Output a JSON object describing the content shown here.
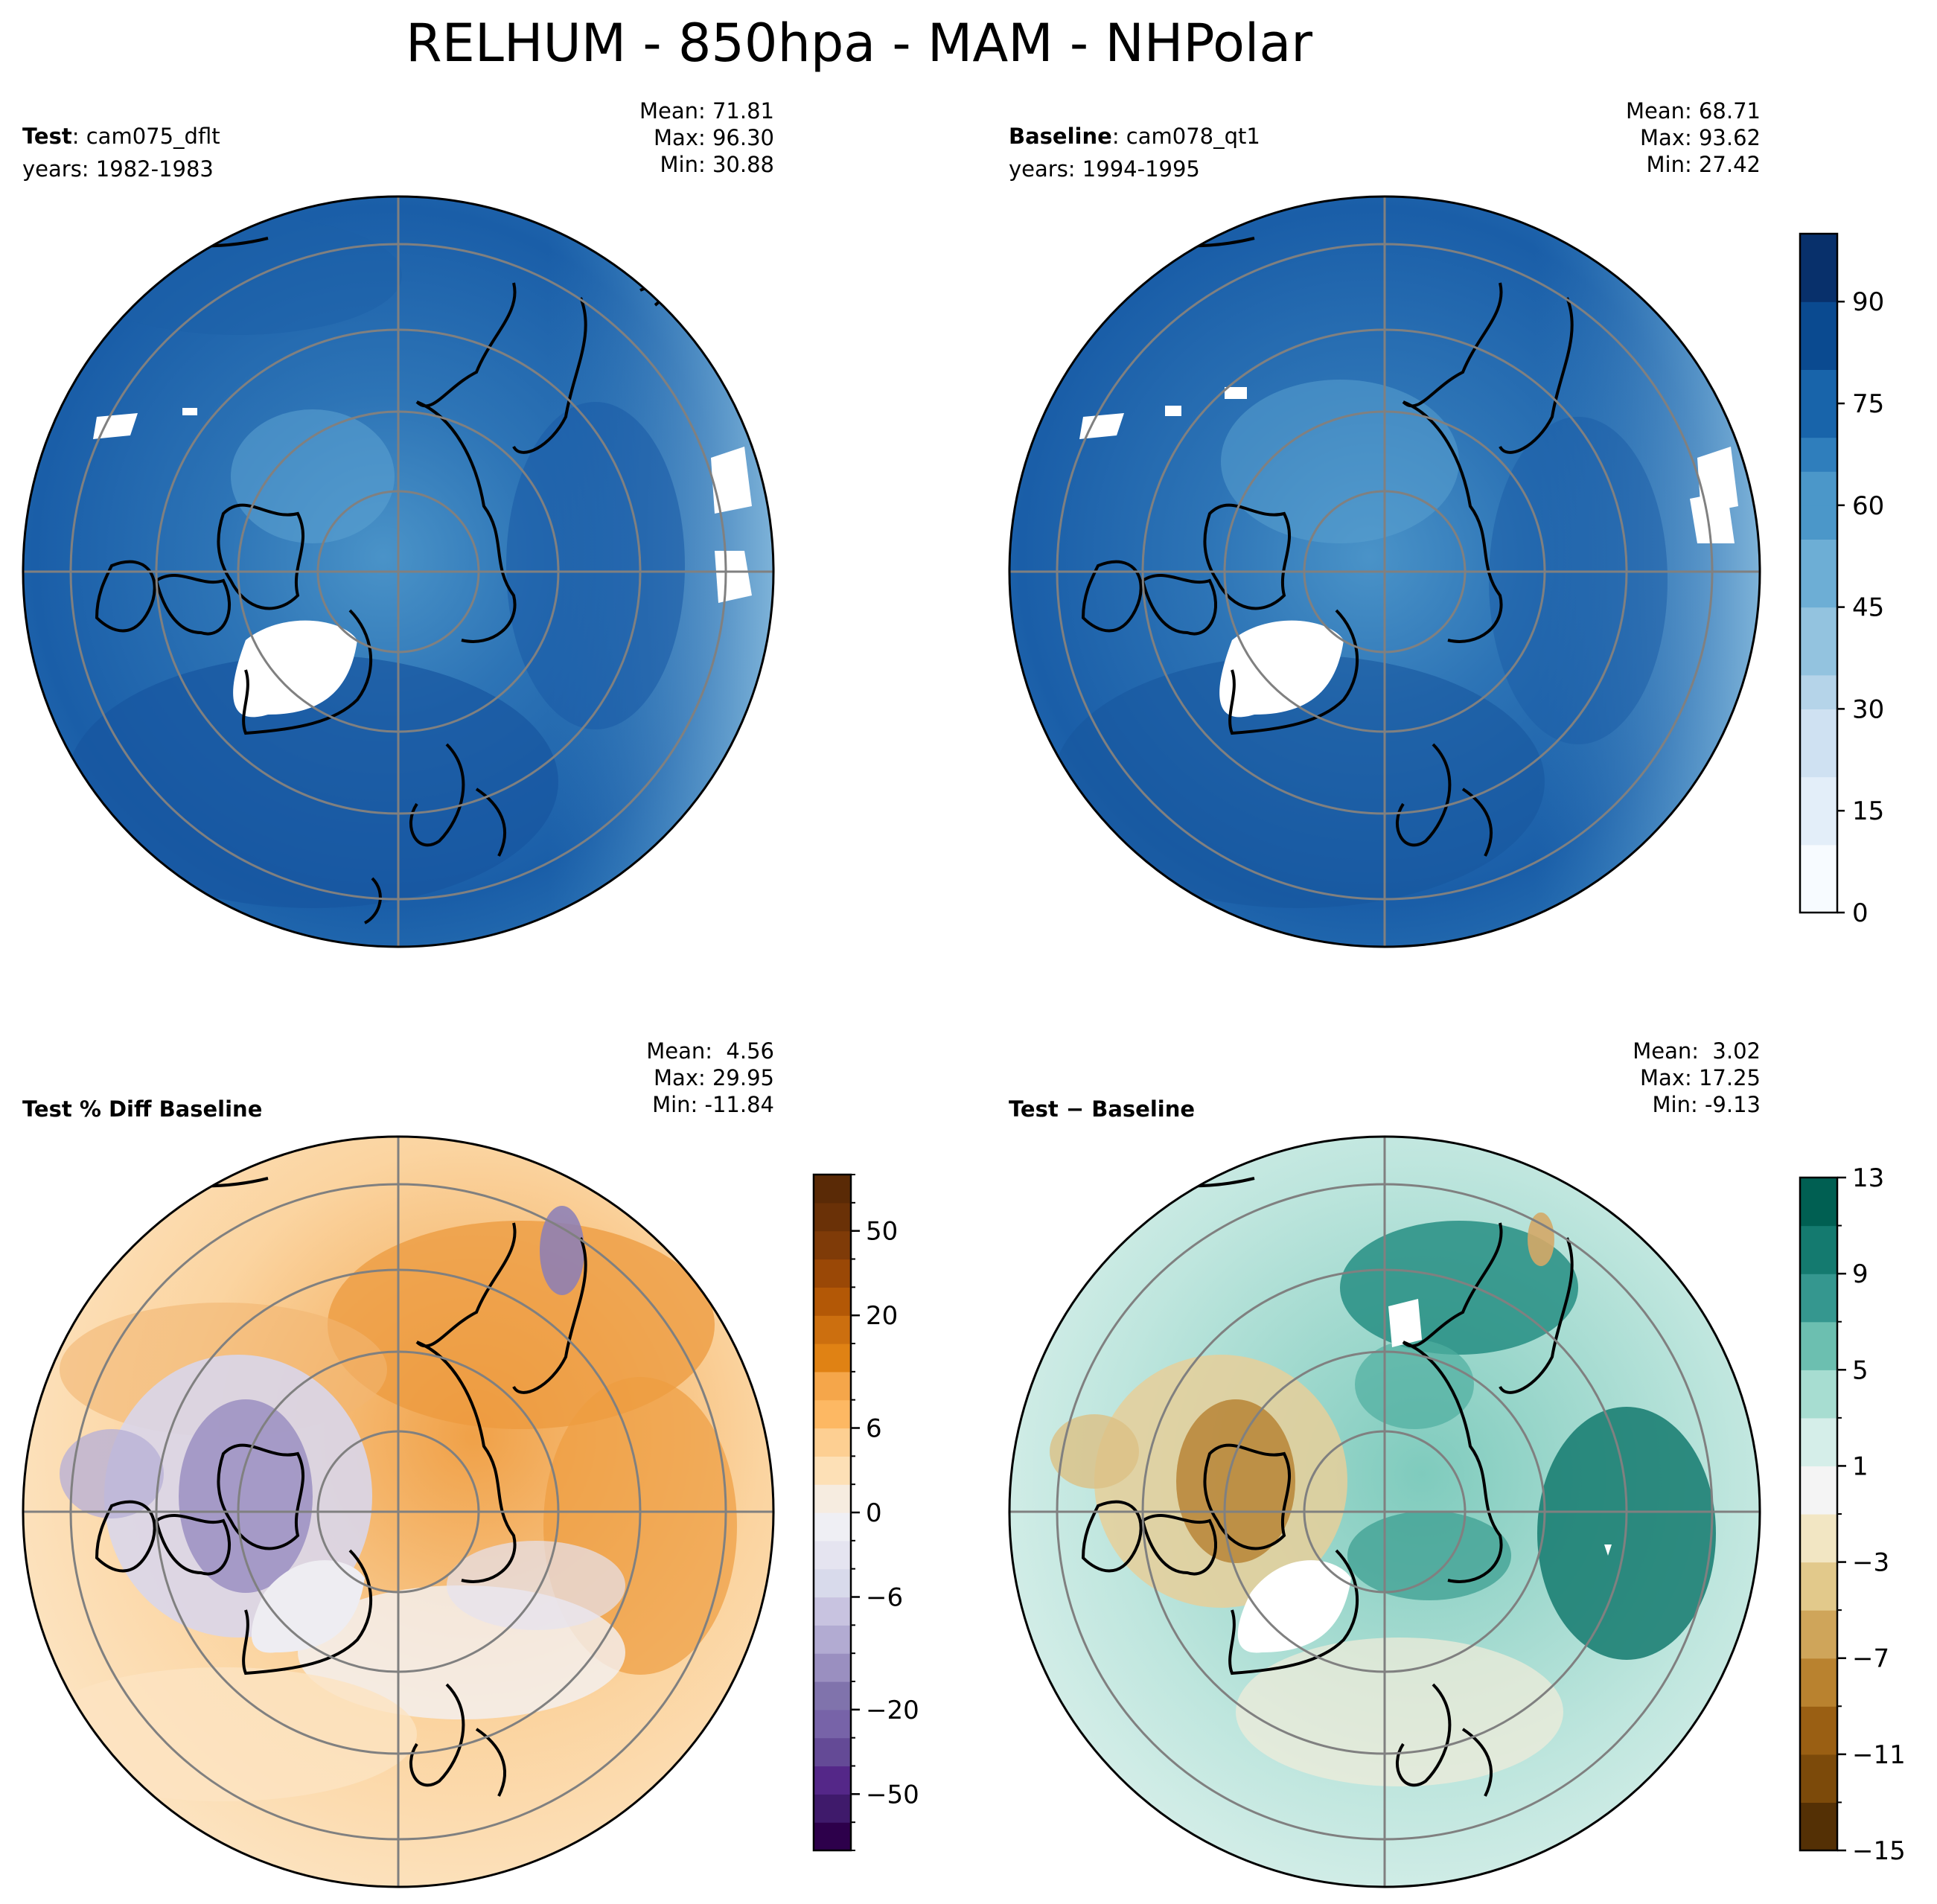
{
  "title": "RELHUM - 850hpa - MAM - NHPolar",
  "panels": [
    {
      "key": "test",
      "label_bold": "Test",
      "label_rest": ": cam075_dflt",
      "years": "years: 1982-1983",
      "stats": [
        "Mean: 71.81",
        "Max: 96.30",
        "Min: 30.88"
      ],
      "cmap": "blues"
    },
    {
      "key": "baseline",
      "label_bold": "Baseline",
      "label_rest": ": cam078_qt1",
      "years": "years: 1994-1995",
      "stats": [
        "Mean: 68.71",
        "Max: 93.62",
        "Min: 27.42"
      ],
      "cmap": "blues"
    },
    {
      "key": "pctdiff",
      "label_bold": "Test % Diff Baseline",
      "label_rest": "",
      "years": "",
      "stats": [
        "Mean:  4.56",
        "Max: 29.95",
        "Min: -11.84"
      ],
      "cmap": "puor"
    },
    {
      "key": "diff",
      "label_bold": "Test",
      "label_rest": " − Baseline",
      "years": "",
      "stats": [
        "Mean:  3.02",
        "Max: 17.25",
        "Min: -9.13"
      ],
      "cmap": "brbg"
    }
  ],
  "chart_data": [
    {
      "type": "heatmap",
      "name": "Test",
      "projection": "north polar stereographic",
      "variable": "RELHUM",
      "level": "850hpa",
      "season": "MAM",
      "case": "cam075_dflt",
      "years": "1982-1983",
      "mean": 71.81,
      "max": 96.3,
      "min": 30.88
    },
    {
      "type": "heatmap",
      "name": "Baseline",
      "projection": "north polar stereographic",
      "variable": "RELHUM",
      "level": "850hpa",
      "season": "MAM",
      "case": "cam078_qt1",
      "years": "1994-1995",
      "mean": 68.71,
      "max": 93.62,
      "min": 27.42
    },
    {
      "type": "heatmap",
      "name": "Test % Diff Baseline",
      "mean": 4.56,
      "max": 29.95,
      "min": -11.84
    },
    {
      "type": "heatmap",
      "name": "Test − Baseline",
      "mean": 3.02,
      "max": 17.25,
      "min": -9.13
    }
  ],
  "colorbars": {
    "main": {
      "range": [
        0,
        100
      ],
      "ticks": [
        0,
        15,
        30,
        45,
        60,
        75,
        90
      ],
      "tick_labels": [
        "0",
        "15",
        "30",
        "45",
        "60",
        "75",
        "90"
      ],
      "colors": [
        "#f7fbff",
        "#e3eef9",
        "#cfe1f2",
        "#b5d4e9",
        "#93c3df",
        "#6daed5",
        "#4b97c9",
        "#2f7ebc",
        "#1864aa",
        "#0a4a90",
        "#08306b"
      ]
    },
    "pctdiff": {
      "levels": [
        -100,
        -70,
        -50,
        -40,
        -30,
        -20,
        -15,
        -10,
        -8,
        -6,
        -4,
        -2,
        0,
        2,
        4,
        6,
        8,
        10,
        15,
        20,
        30,
        40,
        50,
        70,
        100
      ],
      "tick_labels": [
        "−50",
        "−20",
        "−6",
        "0",
        "6",
        "20",
        "50"
      ],
      "tick_values": [
        -50,
        -20,
        -6,
        0,
        6,
        20,
        50
      ],
      "colors": [
        "#2d004b",
        "#3f1a6b",
        "#542788",
        "#644a96",
        "#7763a8",
        "#8073ac",
        "#9a8fc0",
        "#b2abd2",
        "#c8c3e0",
        "#d8daeb",
        "#e5e4f0",
        "#efeff4",
        "#f6ece0",
        "#fde0b6",
        "#fdcf92",
        "#fdb863",
        "#f5a64a",
        "#e08214",
        "#cc6f0f",
        "#b35806",
        "#9a4806",
        "#7f3b08",
        "#6a3107",
        "#5a2a06"
      ]
    },
    "diff": {
      "levels": [
        -15,
        -13,
        -11,
        -9,
        -7,
        -5,
        -3,
        -1,
        1,
        3,
        5,
        7,
        9,
        11,
        13
      ],
      "tick_labels": [
        "−15",
        "−11",
        "−7",
        "−3",
        "1",
        "5",
        "9",
        "13"
      ],
      "tick_values": [
        -15,
        -11,
        -7,
        -3,
        1,
        5,
        9,
        13
      ],
      "colors": [
        "#543005",
        "#7c4a0a",
        "#9a5f13",
        "#b9822f",
        "#cfa55a",
        "#e2c98b",
        "#f2e6c3",
        "#f4f4f4",
        "#d5eee9",
        "#a7ddd1",
        "#6cbfb0",
        "#35978f",
        "#147a6f",
        "#005f52"
      ]
    }
  }
}
